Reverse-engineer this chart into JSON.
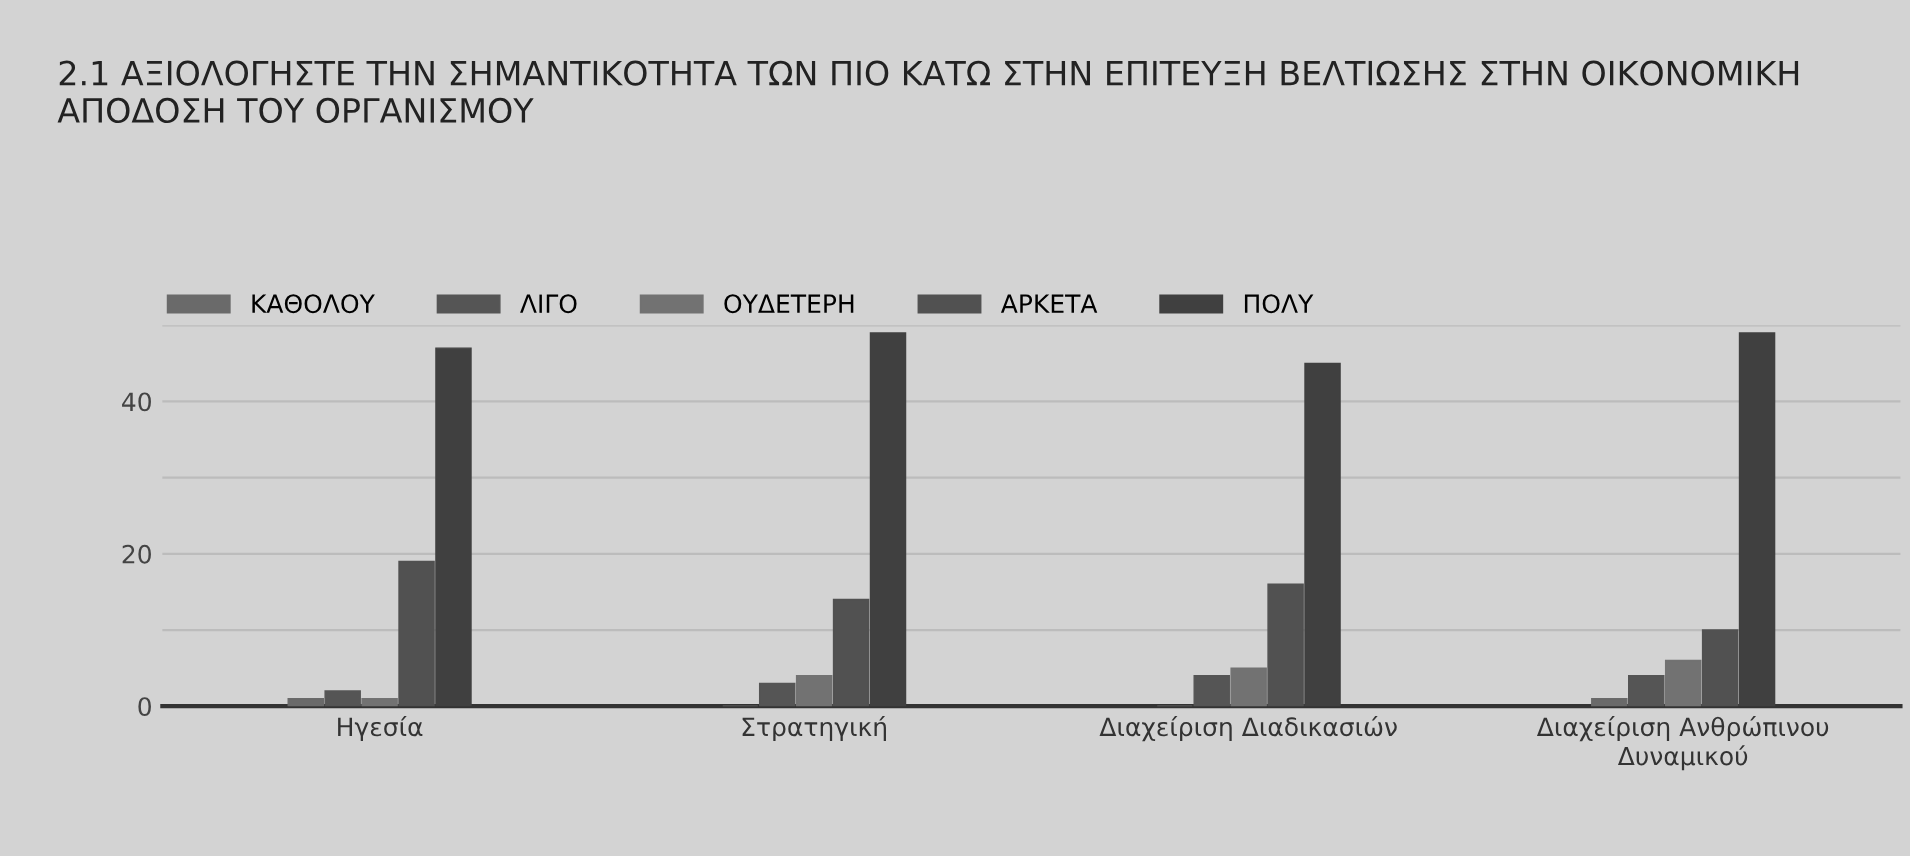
{
  "chart_data": {
    "type": "bar",
    "title": "2.1 ΑΞΙΟΛΟΓΗΣΤΕ ΤΗΝ ΣΗΜΑΝΤΙΚΟΤΗΤΑ ΤΩΝ ΠΙΟ ΚΑΤΩ ΣΤΗΝ ΕΠΙΤΕΥΞΗ ΒΕΛΤΙΩΣΗΣ ΣΤΗΝ ΟΙΚΟΝΟΜΙΚΗ ΑΠΟΔΟΣΗ ΤΟΥ ΟΡΓΑΝΙΣΜΟΥ",
    "categories": [
      "Ηγεσία",
      "Στρατηγική",
      "Διαχείριση Διαδικασιών",
      "Διαχείριση Ανθρώπινου\nΔυναμικού"
    ],
    "series": [
      {
        "name": "ΚΑΘΟΛΟΥ",
        "color": "#6a6a6a",
        "values": [
          1,
          0,
          0,
          1
        ]
      },
      {
        "name": "ΛΙΓΟ",
        "color": "#555555",
        "values": [
          2,
          3,
          4,
          4
        ]
      },
      {
        "name": "ΟΥΔΕΤΕΡΗ",
        "color": "#727272",
        "values": [
          1,
          4,
          5,
          6
        ]
      },
      {
        "name": "ΑΡΚΕΤΑ",
        "color": "#515151",
        "values": [
          19,
          14,
          16,
          10
        ]
      },
      {
        "name": "ΠΟΛΥ",
        "color": "#404040",
        "values": [
          47,
          49,
          45,
          49
        ]
      }
    ],
    "ylim": [
      0,
      50
    ],
    "yticks": [
      0,
      {
        "value": 10,
        "label": null
      },
      20,
      {
        "value": 30,
        "label": null
      },
      40,
      {
        "value": 50,
        "label": null
      }
    ],
    "grid": "y",
    "legend": "top left"
  }
}
